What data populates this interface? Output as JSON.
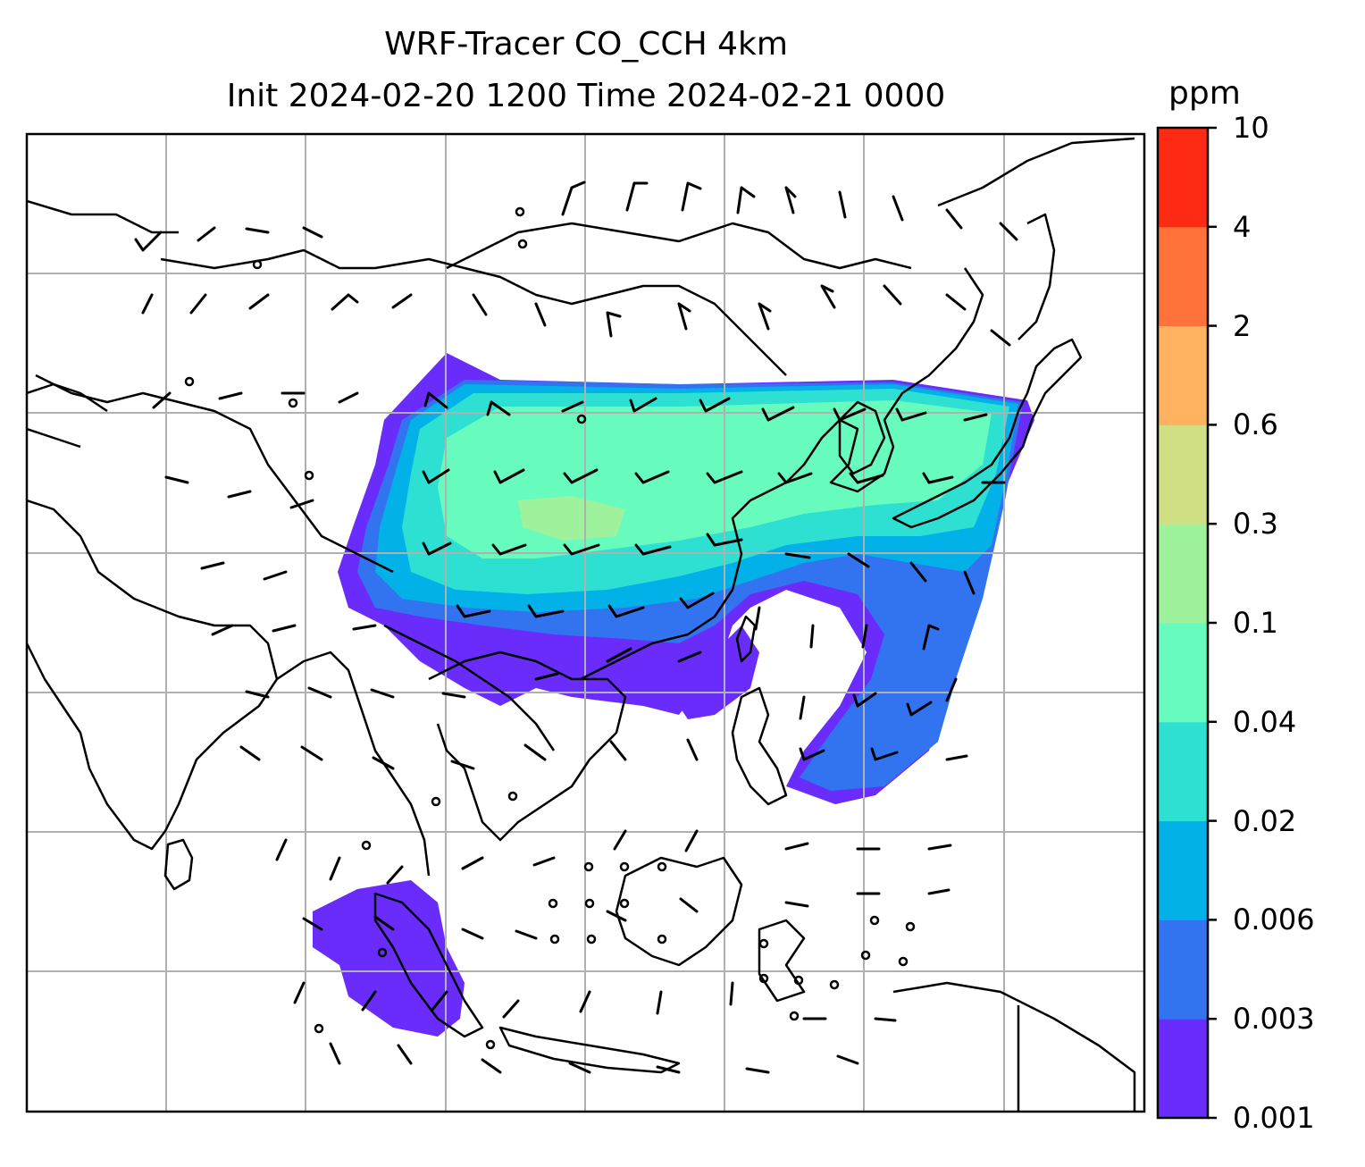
{
  "title_line1": "WRF-Tracer CO_CCH 4km",
  "title_line2": "Init 2024-02-20 1200 Time 2024-02-21 0000",
  "colorbar": {
    "unit": "ppm",
    "levels": [
      "0.001",
      "0.003",
      "0.006",
      "0.02",
      "0.04",
      "0.1",
      "0.3",
      "0.6",
      "2",
      "4",
      "10"
    ],
    "colors": [
      "#6a2cfb",
      "#3274f0",
      "#02b1e8",
      "#2ee0d2",
      "#68fbbe",
      "#9df29b",
      "#d0df83",
      "#ffb360",
      "#ff7239",
      "#ff2a14"
    ]
  },
  "grid": {
    "lines": "on",
    "color": "#b0b0b0"
  },
  "wind_field": "barbs"
}
